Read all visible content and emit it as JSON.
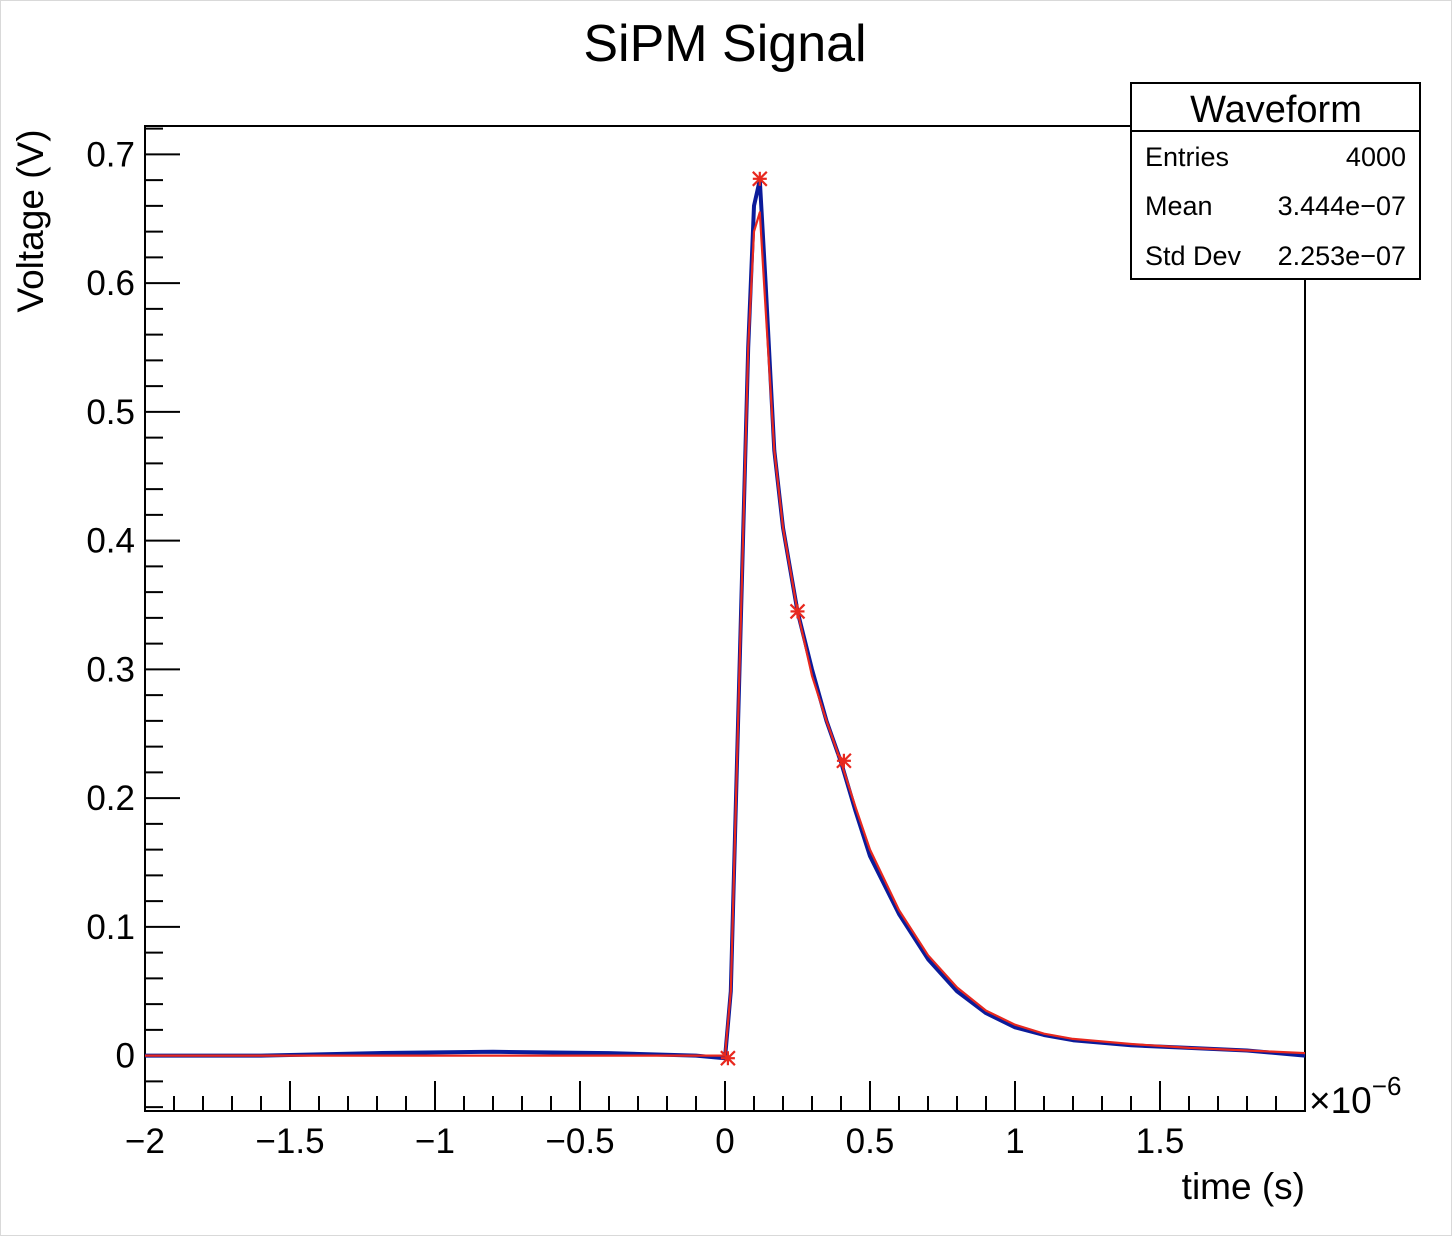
{
  "chart_data": {
    "type": "line",
    "title": "SiPM Signal",
    "xlabel": "time (s)",
    "ylabel": "Voltage (V)",
    "x_multiplier": "×10",
    "x_multiplier_exponent": "−6",
    "xlim": [
      -2.0,
      2.0
    ],
    "ylim": [
      -0.043,
      0.722
    ],
    "x_unit_scale": 1e-06,
    "grid": false,
    "x_ticks": [
      {
        "value": -2,
        "label": "−2"
      },
      {
        "value": -1.5,
        "label": "−1.5"
      },
      {
        "value": -1,
        "label": "−1"
      },
      {
        "value": -0.5,
        "label": "−0.5"
      },
      {
        "value": 0,
        "label": "0"
      },
      {
        "value": 0.5,
        "label": "0.5"
      },
      {
        "value": 1,
        "label": "1"
      },
      {
        "value": 1.5,
        "label": "1.5"
      }
    ],
    "y_ticks": [
      {
        "value": 0,
        "label": "0"
      },
      {
        "value": 0.1,
        "label": "0.1"
      },
      {
        "value": 0.2,
        "label": "0.2"
      },
      {
        "value": 0.3,
        "label": "0.3"
      },
      {
        "value": 0.4,
        "label": "0.4"
      },
      {
        "value": 0.5,
        "label": "0.5"
      },
      {
        "value": 0.6,
        "label": "0.6"
      },
      {
        "value": 0.7,
        "label": "0.7"
      }
    ],
    "series": [
      {
        "color": "#0b1b9a",
        "x": [
          -2.0,
          -1.6,
          -1.2,
          -0.8,
          -0.4,
          -0.1,
          0.0,
          0.02,
          0.05,
          0.08,
          0.1,
          0.12,
          0.14,
          0.17,
          0.2,
          0.25,
          0.3,
          0.35,
          0.4,
          0.45,
          0.5,
          0.6,
          0.7,
          0.8,
          0.9,
          1.0,
          1.1,
          1.2,
          1.4,
          1.6,
          1.8,
          2.0
        ],
        "values": [
          0.0,
          0.0,
          0.002,
          0.003,
          0.002,
          0.0,
          -0.002,
          0.05,
          0.3,
          0.55,
          0.66,
          0.68,
          0.6,
          0.47,
          0.41,
          0.345,
          0.3,
          0.26,
          0.228,
          0.19,
          0.155,
          0.11,
          0.075,
          0.05,
          0.033,
          0.022,
          0.016,
          0.012,
          0.008,
          0.006,
          0.004,
          0.0
        ]
      },
      {
        "color": "#e8281e",
        "x": [
          -2.0,
          -1.6,
          -1.2,
          -0.8,
          -0.4,
          -0.1,
          0.0,
          0.02,
          0.05,
          0.08,
          0.1,
          0.12,
          0.14,
          0.17,
          0.2,
          0.25,
          0.3,
          0.35,
          0.4,
          0.45,
          0.5,
          0.6,
          0.7,
          0.8,
          0.9,
          1.0,
          1.1,
          1.2,
          1.4,
          1.6,
          1.8,
          2.0
        ],
        "values": [
          0.0,
          0.0,
          0.0,
          0.0,
          0.0,
          0.0,
          0.0,
          0.05,
          0.3,
          0.55,
          0.64,
          0.655,
          0.58,
          0.47,
          0.41,
          0.345,
          0.295,
          0.26,
          0.228,
          0.193,
          0.16,
          0.113,
          0.078,
          0.053,
          0.035,
          0.024,
          0.017,
          0.013,
          0.009,
          0.006,
          0.004,
          0.002
        ]
      }
    ],
    "markers": {
      "color": "#e8281e",
      "points": [
        {
          "x": 0.01,
          "y": -0.002
        },
        {
          "x": 0.12,
          "y": 0.681
        },
        {
          "x": 0.25,
          "y": 0.345
        },
        {
          "x": 0.41,
          "y": 0.229
        }
      ]
    },
    "stats_box": {
      "title": "Waveform",
      "rows": [
        {
          "label": "Entries",
          "value": "4000"
        },
        {
          "label": "Mean",
          "value": "3.444e−07"
        },
        {
          "label": "Std Dev",
          "value": "2.253e−07"
        }
      ]
    }
  }
}
